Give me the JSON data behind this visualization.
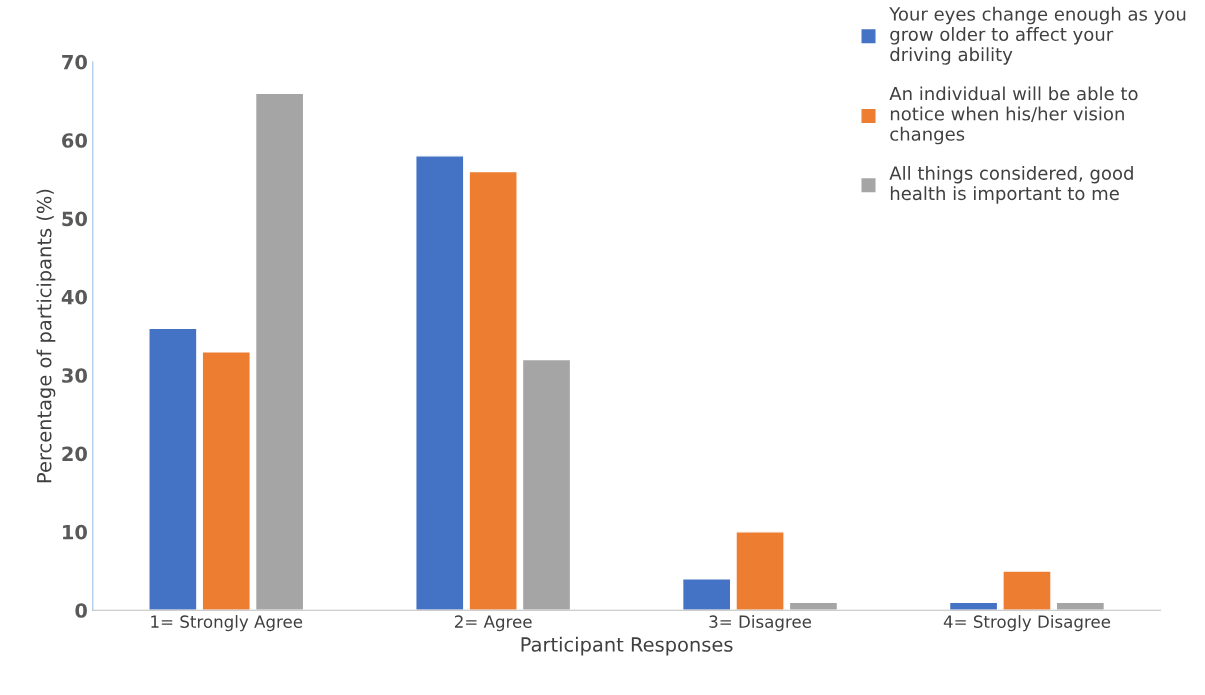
{
  "chart_data": {
    "type": "bar",
    "xlabel": "Participant Responses",
    "ylabel": "Percentage of participants (%)",
    "categories": [
      "1= Strongly Agree",
      "2= Agree",
      "3= Disagree",
      "4= Strogly Disagree"
    ],
    "series": [
      {
        "name": "Your eyes change enough as you grow older to affect your driving ability",
        "color": "#4472c4",
        "values": [
          36,
          58,
          4,
          1
        ]
      },
      {
        "name": "An individual will be able to notice when his/her vision changes",
        "color": "#ed7d31",
        "values": [
          33,
          56,
          10,
          5
        ]
      },
      {
        "name": "All things considered, good health is important to me",
        "color": "#a5a5a5",
        "values": [
          66,
          32,
          1,
          1
        ]
      }
    ],
    "ylim": [
      0,
      70
    ],
    "yticks": [
      0,
      10,
      20,
      30,
      40,
      50,
      60,
      70
    ],
    "grid": false,
    "legend": "top right"
  }
}
